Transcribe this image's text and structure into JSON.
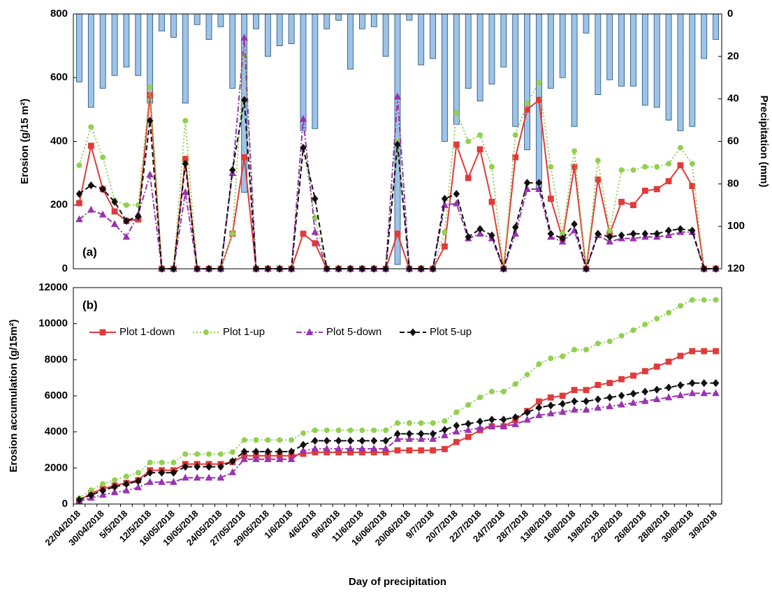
{
  "chart_data": [
    {
      "type": "line",
      "ylabel": "Erosion (g/15 m²)",
      "y2label": "Precipitation (mm)",
      "annotation": "(a)",
      "ylim": [
        0,
        800
      ],
      "yticks": [
        0,
        200,
        400,
        600,
        800
      ],
      "y2lim": [
        120,
        0
      ],
      "y2ticks": [
        0,
        20,
        40,
        60,
        80,
        100,
        120
      ],
      "series": [
        {
          "type": "bar",
          "axis": "y2",
          "color": "#9dc3e6",
          "edge": "#1f4e79",
          "values": [
            32,
            44,
            35,
            29,
            25,
            29,
            42,
            8,
            11,
            42,
            5,
            12,
            6,
            35,
            84,
            7,
            20,
            15,
            14,
            55,
            54,
            7,
            3,
            26,
            7,
            6,
            20,
            118,
            3,
            24,
            21,
            60,
            52,
            35,
            41,
            33,
            25,
            53,
            64,
            82,
            35,
            30,
            53,
            9,
            38,
            31,
            34,
            34,
            43,
            44,
            50,
            55,
            53,
            21,
            12
          ]
        },
        {
          "color": "#e03a3a",
          "marker": "square",
          "dash": "solid",
          "values": [
            206,
            386,
            250,
            180,
            150,
            155,
            545,
            0,
            0,
            345,
            0,
            0,
            0,
            110,
            350,
            0,
            0,
            0,
            0,
            110,
            80,
            0,
            0,
            0,
            0,
            0,
            0,
            110,
            0,
            0,
            0,
            70,
            390,
            285,
            375,
            210,
            0,
            350,
            500,
            530,
            220,
            95,
            320,
            0,
            280,
            110,
            210,
            200,
            245,
            250,
            275,
            325,
            260,
            0,
            0
          ]
        },
        {
          "color": "#92d050",
          "marker": "circle",
          "dash": "dotted",
          "values": [
            325,
            445,
            350,
            215,
            200,
            200,
            570,
            0,
            0,
            465,
            0,
            0,
            0,
            110,
            670,
            0,
            0,
            0,
            0,
            380,
            160,
            0,
            0,
            0,
            0,
            0,
            0,
            400,
            0,
            0,
            0,
            115,
            490,
            400,
            420,
            320,
            0,
            420,
            520,
            585,
            320,
            110,
            370,
            0,
            340,
            120,
            310,
            310,
            320,
            320,
            330,
            380,
            330,
            0,
            0
          ]
        },
        {
          "color": "#9933b0",
          "marker": "triangle",
          "dash": "dashdot",
          "values": [
            155,
            185,
            170,
            140,
            100,
            170,
            295,
            0,
            0,
            240,
            0,
            0,
            0,
            300,
            725,
            0,
            0,
            0,
            0,
            470,
            115,
            0,
            0,
            0,
            0,
            0,
            0,
            540,
            0,
            0,
            0,
            200,
            205,
            95,
            110,
            95,
            0,
            110,
            250,
            250,
            100,
            85,
            120,
            0,
            105,
            85,
            95,
            95,
            100,
            100,
            105,
            115,
            115,
            0,
            0
          ]
        },
        {
          "color": "#111111",
          "marker": "diamond",
          "dash": "dashed",
          "values": [
            235,
            262,
            250,
            210,
            150,
            165,
            465,
            0,
            0,
            330,
            0,
            0,
            0,
            310,
            530,
            0,
            0,
            0,
            0,
            380,
            220,
            0,
            0,
            0,
            0,
            0,
            0,
            390,
            0,
            0,
            0,
            220,
            235,
            100,
            125,
            105,
            0,
            130,
            270,
            270,
            110,
            95,
            140,
            0,
            110,
            100,
            105,
            110,
            110,
            110,
            120,
            125,
            120,
            0,
            0
          ]
        }
      ]
    },
    {
      "type": "line",
      "ylabel": "Erosion accumulation (g/15m²)",
      "xlabel": "Day of precipitation",
      "annotation": "(b)",
      "legend": "upper left",
      "categories": [
        "22/04/2018",
        null,
        "30/04/2018",
        null,
        "5/5/2018",
        null,
        "12/5/2018",
        null,
        "16/05/2018",
        null,
        "19/05/2018",
        null,
        "24/05/2018",
        null,
        "27/05/2018",
        null,
        "29/05/2018",
        null,
        "1/6/2018",
        null,
        "4/6/2018",
        null,
        "9/6/2018",
        null,
        "11/6/2018",
        null,
        "16/06/2018",
        null,
        "20/06/2018",
        null,
        "9/7/2018",
        null,
        "20/7/2018",
        null,
        "22/7/2018",
        null,
        "24/7/2018",
        null,
        "28/7/2018",
        null,
        "13/8/2018",
        null,
        "16/8/2018",
        null,
        "19/8/2018",
        null,
        "22/8/2018",
        null,
        "26/8/2018",
        null,
        "28/8/2018",
        null,
        "30/8/2018",
        null,
        "3/9/2018"
      ],
      "ylim": [
        0,
        12000
      ],
      "yticks": [
        0,
        2000,
        4000,
        6000,
        8000,
        10000,
        12000
      ],
      "series": [
        {
          "name": "Plot 1-down",
          "color": "#e03a3a",
          "marker": "square",
          "dash": "solid",
          "values": [
            206,
            592,
            842,
            1022,
            1172,
            1327,
            1872,
            1872,
            1872,
            2217,
            2217,
            2217,
            2217,
            2327,
            2677,
            2677,
            2677,
            2677,
            2677,
            2787,
            2867,
            2867,
            2867,
            2867,
            2867,
            2867,
            2867,
            2977,
            2977,
            2977,
            2977,
            3047,
            3437,
            3722,
            4097,
            4307,
            4307,
            4657,
            5157,
            5687,
            5907,
            6002,
            6322,
            6322,
            6602,
            6712,
            6922,
            7122,
            7367,
            7617,
            7892,
            8217,
            8477,
            8477,
            8477
          ]
        },
        {
          "name": "Plot 1-up",
          "color": "#92d050",
          "marker": "circle",
          "dash": "dotted",
          "values": [
            325,
            770,
            1120,
            1335,
            1535,
            1735,
            2305,
            2305,
            2305,
            2770,
            2770,
            2770,
            2770,
            2880,
            3550,
            3550,
            3550,
            3550,
            3550,
            3930,
            4090,
            4090,
            4090,
            4090,
            4090,
            4090,
            4090,
            4490,
            4490,
            4490,
            4490,
            4605,
            5095,
            5495,
            5915,
            6235,
            6235,
            6655,
            7175,
            7760,
            8080,
            8190,
            8560,
            8560,
            8900,
            9020,
            9330,
            9640,
            9960,
            10280,
            10610,
            10990,
            11320,
            11320,
            11320
          ]
        },
        {
          "name": "Plot 5-down",
          "color": "#9933b0",
          "marker": "triangle",
          "dash": "dashdot",
          "values": [
            155,
            340,
            510,
            650,
            750,
            920,
            1215,
            1215,
            1215,
            1455,
            1455,
            1455,
            1455,
            1755,
            2480,
            2480,
            2480,
            2480,
            2480,
            2950,
            3065,
            3065,
            3065,
            3065,
            3065,
            3065,
            3065,
            3605,
            3605,
            3605,
            3605,
            3805,
            4010,
            4105,
            4215,
            4310,
            4310,
            4420,
            4670,
            4920,
            5020,
            5105,
            5225,
            5225,
            5330,
            5415,
            5510,
            5605,
            5705,
            5805,
            5910,
            6025,
            6140,
            6140,
            6140
          ]
        },
        {
          "name": "Plot 5-up",
          "color": "#111111",
          "marker": "diamond",
          "dash": "dashed",
          "values": [
            235,
            497,
            747,
            957,
            1107,
            1272,
            1737,
            1737,
            1737,
            2067,
            2067,
            2067,
            2067,
            2377,
            2907,
            2907,
            2907,
            2907,
            2907,
            3287,
            3507,
            3507,
            3507,
            3507,
            3507,
            3507,
            3507,
            3897,
            3897,
            3897,
            3897,
            4117,
            4352,
            4452,
            4577,
            4682,
            4682,
            4812,
            5082,
            5352,
            5462,
            5557,
            5697,
            5697,
            5807,
            5907,
            6012,
            6122,
            6232,
            6342,
            6462,
            6587,
            6707,
            6707,
            6707
          ]
        }
      ]
    }
  ]
}
